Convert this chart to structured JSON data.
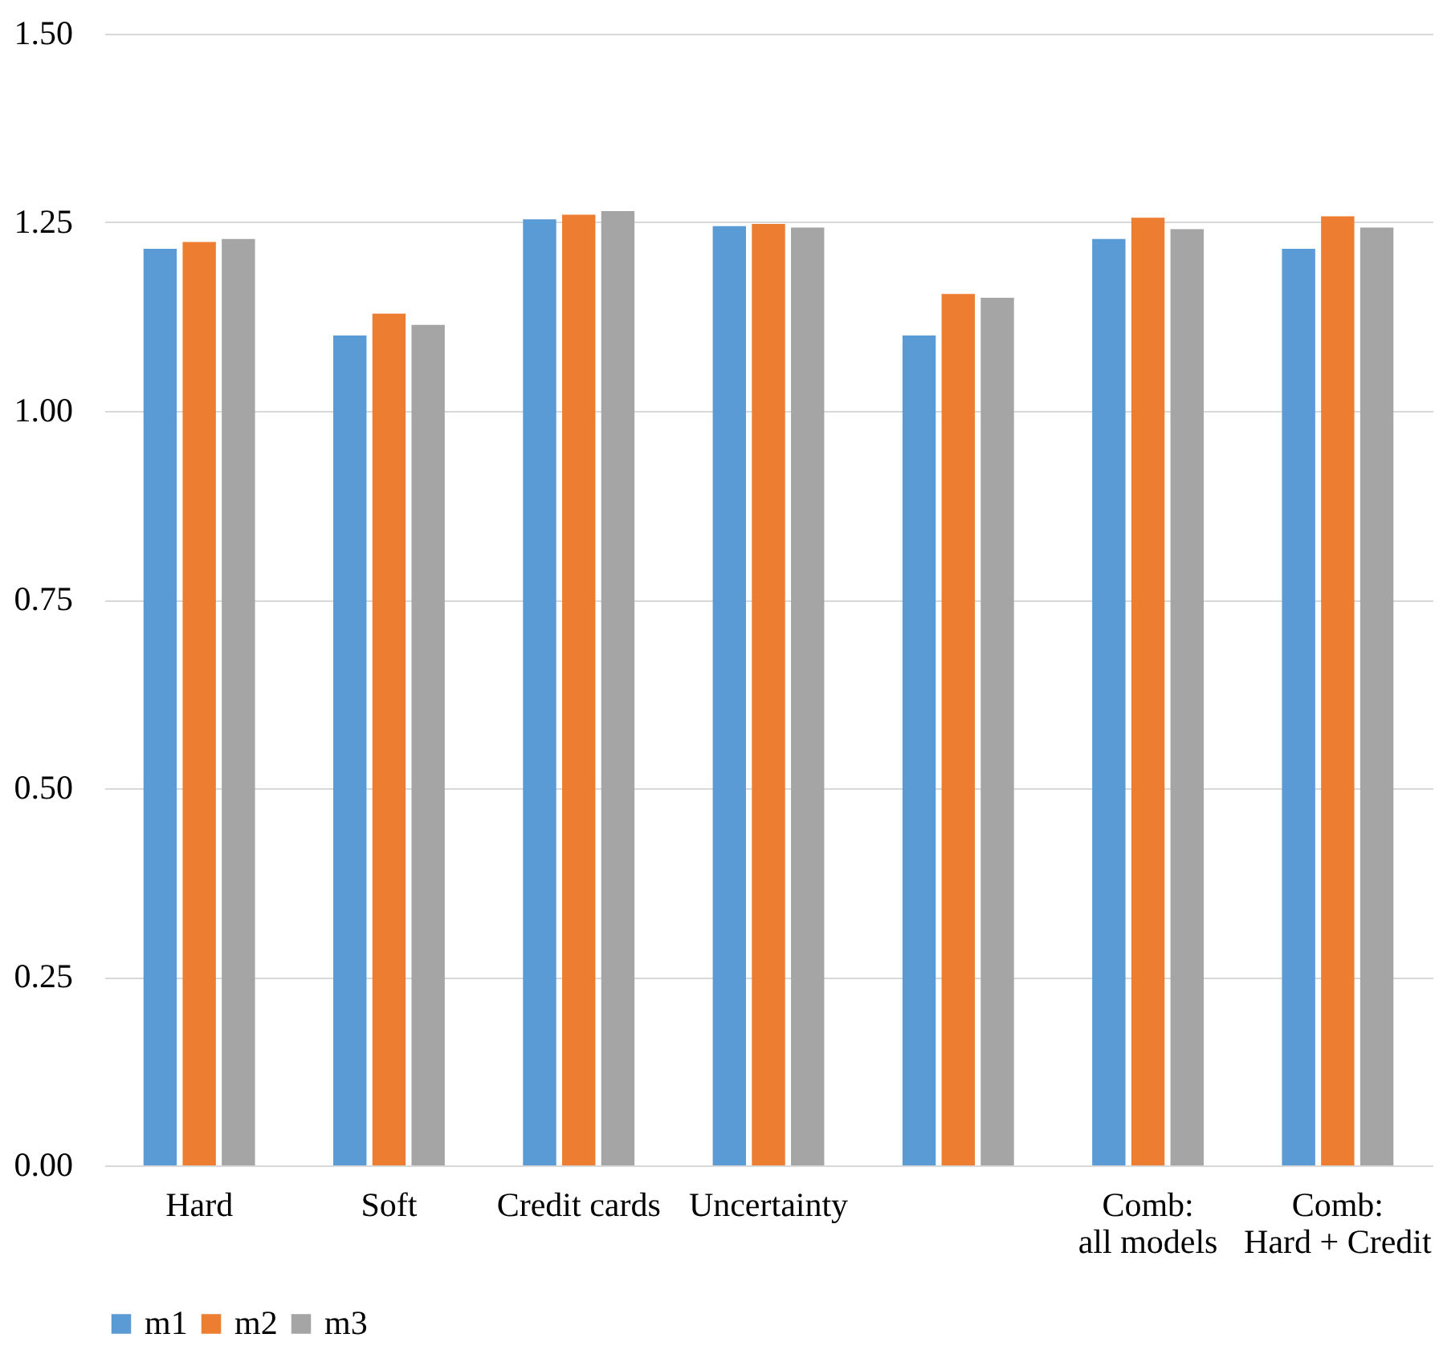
{
  "chart_data": {
    "type": "bar",
    "categories": [
      "Hard",
      "Soft",
      "Credit cards",
      "Uncertainty",
      null,
      "Comb:\nall models",
      "Comb:\nHard + Credit"
    ],
    "series": [
      {
        "name": "m1",
        "color": "#5b9bd5",
        "values": [
          1.215,
          1.1,
          1.254,
          1.245,
          1.1,
          1.228,
          1.215
        ]
      },
      {
        "name": "m2",
        "color": "#ed7d31",
        "values": [
          1.224,
          1.129,
          1.26,
          1.248,
          1.155,
          1.256,
          1.258
        ]
      },
      {
        "name": "m3",
        "color": "#a5a5a5",
        "values": [
          1.228,
          1.114,
          1.265,
          1.243,
          1.15,
          1.241,
          1.243
        ]
      }
    ],
    "ylim": [
      0,
      1.5
    ],
    "yticks": [
      {
        "value": 0,
        "label": "0.00"
      },
      {
        "value": 0.25,
        "label": "0.25"
      },
      {
        "value": 0.5,
        "label": "0.50"
      },
      {
        "value": 0.75,
        "label": "0.75"
      },
      {
        "value": 1,
        "label": "1.00"
      },
      {
        "value": 1.25,
        "label": "1.25"
      },
      {
        "value": 1.5,
        "label": "1.50"
      }
    ],
    "grid": "y",
    "legend": "bottom"
  }
}
